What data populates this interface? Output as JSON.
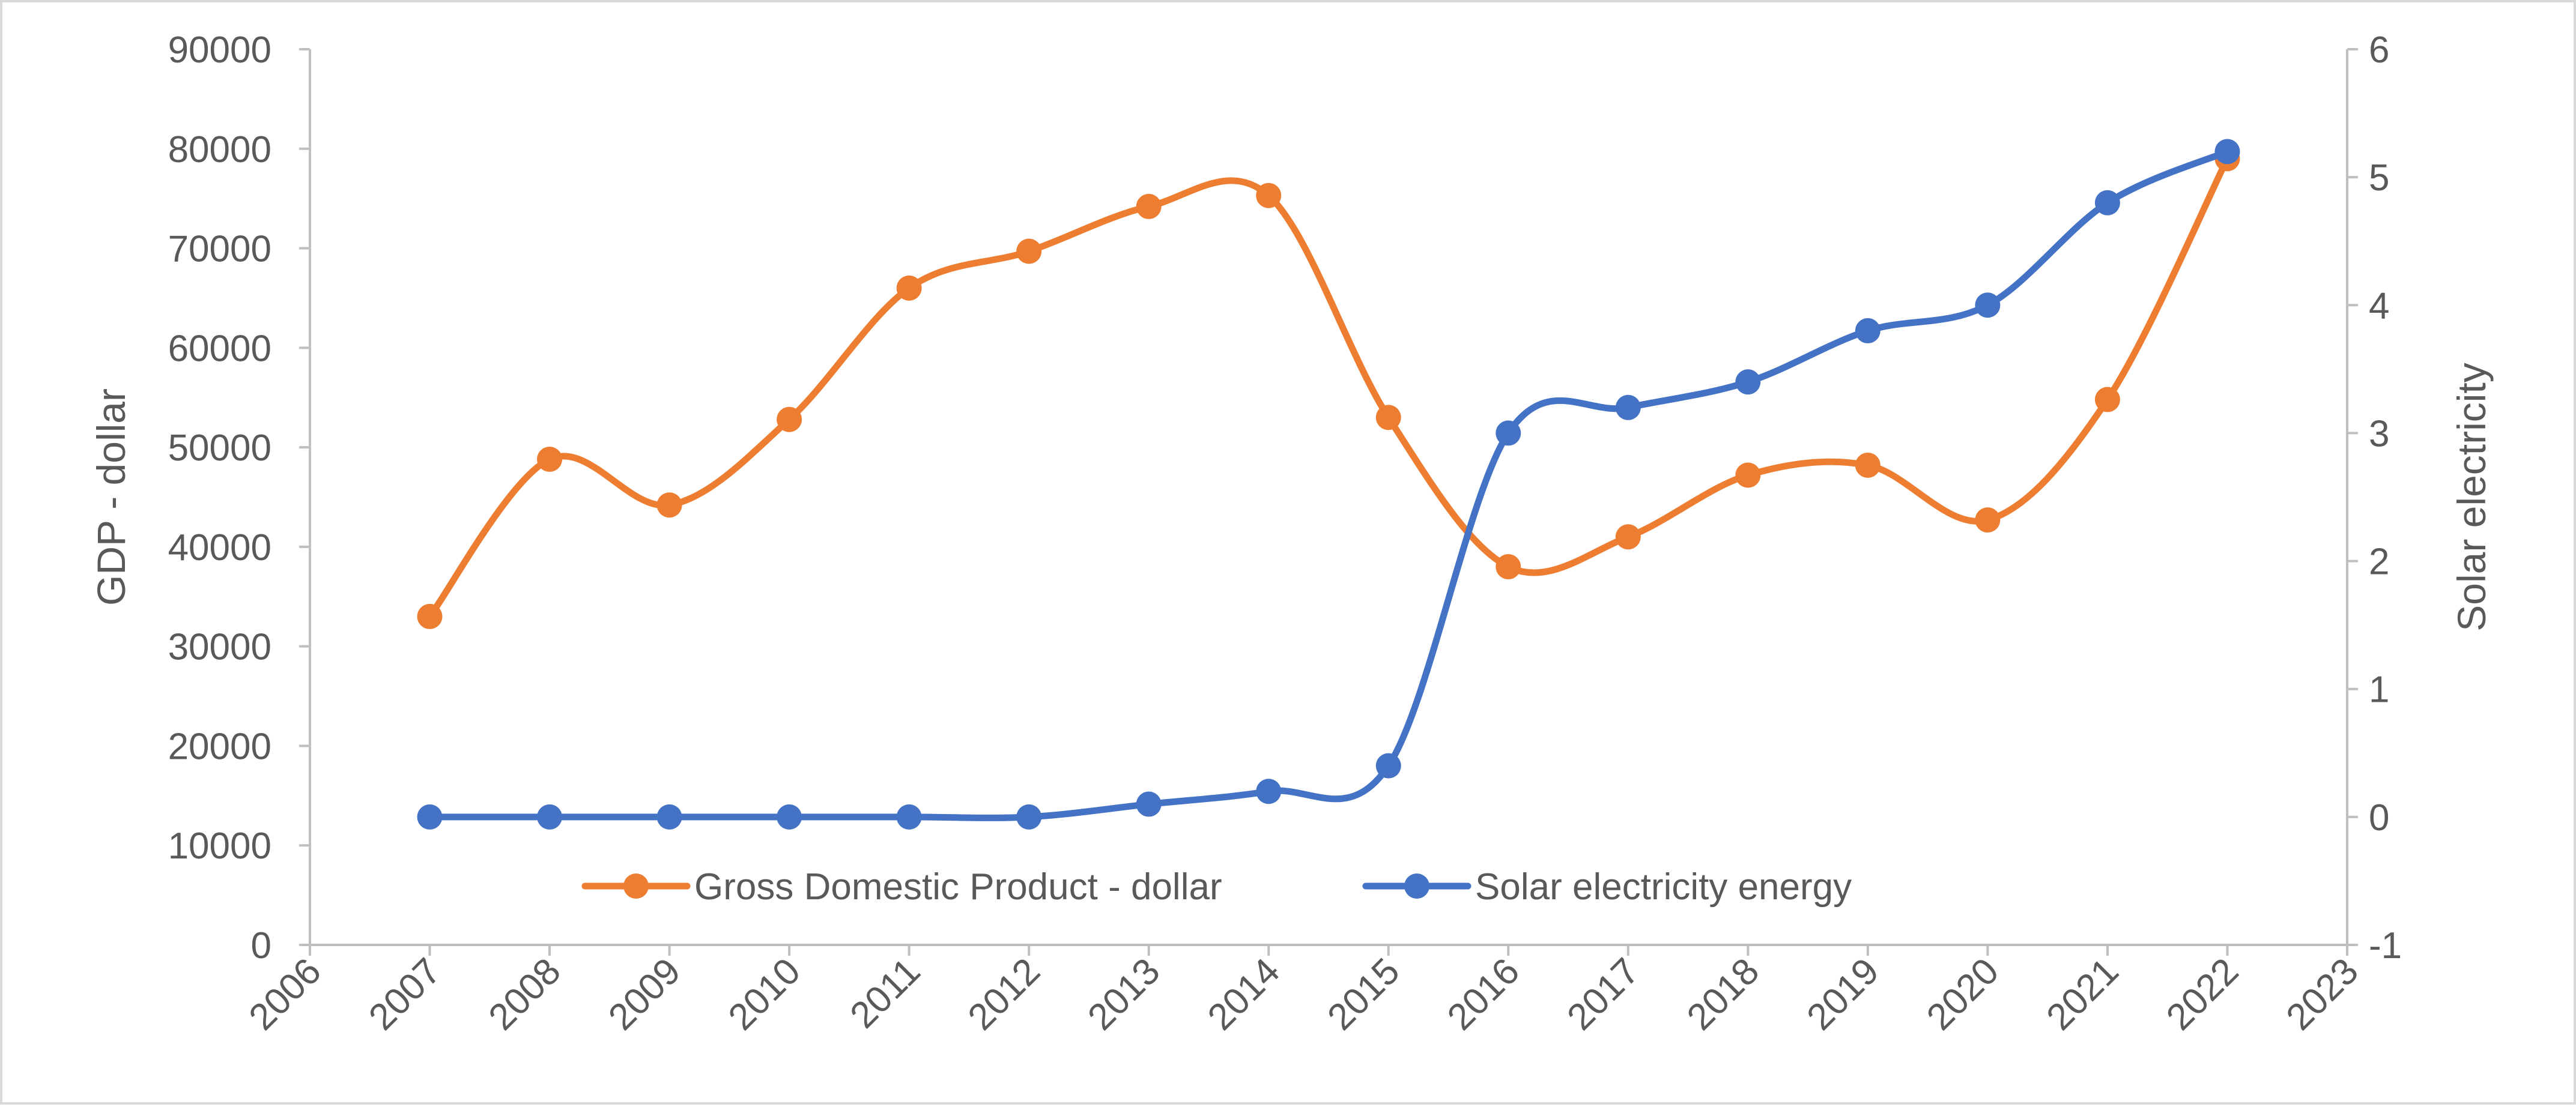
{
  "chart_data": {
    "type": "line",
    "title": "",
    "x": [
      2007,
      2008,
      2009,
      2010,
      2011,
      2012,
      2013,
      2014,
      2015,
      2016,
      2017,
      2018,
      2019,
      2020,
      2021,
      2022
    ],
    "xlim": [
      2006,
      2023
    ],
    "x_ticks": [
      "2006",
      "2007",
      "2008",
      "2009",
      "2010",
      "2011",
      "2012",
      "2013",
      "2014",
      "2015",
      "2016",
      "2017",
      "2018",
      "2019",
      "2020",
      "2021",
      "2022",
      "2023"
    ],
    "ylabel": "GDP - dollar",
    "y2label": "Solar electricity",
    "ylim": [
      0,
      90000
    ],
    "y_ticks": [
      "0",
      "10000",
      "20000",
      "30000",
      "40000",
      "50000",
      "60000",
      "70000",
      "80000",
      "90000"
    ],
    "y2lim": [
      -1,
      6
    ],
    "y2_ticks": [
      "-1",
      "0",
      "1",
      "2",
      "3",
      "4",
      "5",
      "6"
    ],
    "series": [
      {
        "name": "Gross Domestic Product - dollar",
        "axis": "left",
        "color": "#ED7D31",
        "values": [
          33000,
          48800,
          44200,
          52800,
          66000,
          69700,
          74200,
          75300,
          53000,
          38000,
          41000,
          47200,
          48200,
          42700,
          54800,
          79000
        ]
      },
      {
        "name": "Solar electricity energy",
        "axis": "right",
        "color": "#4472C4",
        "values": [
          0,
          0,
          0,
          0,
          0,
          0,
          0.1,
          0.2,
          0.4,
          3.0,
          3.2,
          3.4,
          3.8,
          4.0,
          4.8,
          5.2
        ]
      }
    ],
    "legend_position": "bottom-inside",
    "grid": false
  }
}
